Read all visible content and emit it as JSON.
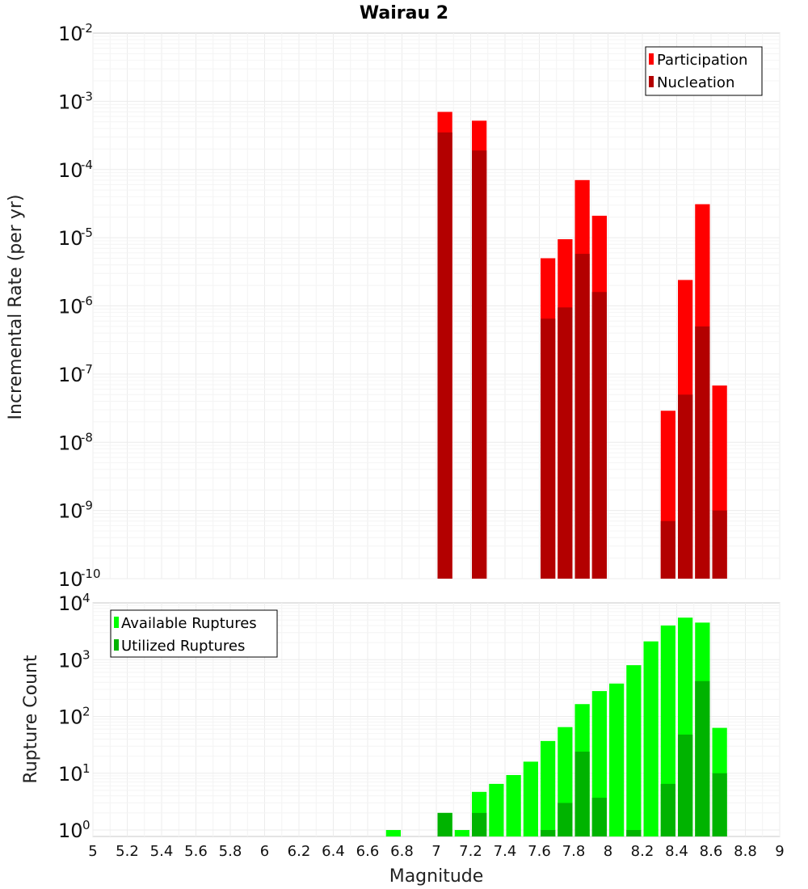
{
  "chart_data": [
    {
      "type": "bar",
      "title": "Wairau 2",
      "xlabel": "",
      "ylabel": "Incremental Rate (per yr)",
      "yscale": "log",
      "xlim": [
        5,
        9
      ],
      "ylim": [
        1e-10,
        0.01
      ],
      "grid": true,
      "legend_position": "top-right",
      "x": [
        7.05,
        7.25,
        7.65,
        7.75,
        7.85,
        7.95,
        8.35,
        8.45,
        8.55,
        8.65
      ],
      "series": [
        {
          "name": "Participation",
          "color": "#ff0000",
          "values": [
            0.0007,
            0.00052,
            5e-06,
            9.5e-06,
            7e-05,
            2.1e-05,
            2.9e-08,
            2.4e-06,
            3.1e-05,
            6.8e-08
          ]
        },
        {
          "name": "Nucleation",
          "color": "#b30000",
          "values": [
            0.00035,
            0.00019,
            6.5e-07,
            9.5e-07,
            5.8e-06,
            1.6e-06,
            7e-10,
            5e-08,
            5e-07,
            1e-09
          ]
        }
      ]
    },
    {
      "type": "bar",
      "title": "",
      "xlabel": "Magnitude",
      "ylabel": "Rupture Count",
      "yscale": "log",
      "xlim": [
        5,
        9
      ],
      "ylim": [
        0.77,
        10000
      ],
      "grid": true,
      "legend_position": "top-left",
      "x": [
        6.75,
        7.05,
        7.15,
        7.25,
        7.35,
        7.45,
        7.55,
        7.65,
        7.75,
        7.85,
        7.95,
        8.05,
        8.15,
        8.25,
        8.35,
        8.45,
        8.55,
        8.65
      ],
      "series": [
        {
          "name": "Available Ruptures",
          "color": "#00ff00",
          "values": [
            1,
            2,
            1,
            4.7,
            6.5,
            9.3,
            16,
            37,
            65,
            165,
            280,
            380,
            800,
            2100,
            4000,
            5500,
            4500,
            63
          ]
        },
        {
          "name": "Utilized Ruptures",
          "color": "#00b300",
          "values": [
            0,
            2,
            0,
            2,
            0,
            0,
            0,
            1,
            3,
            24,
            3.7,
            0,
            1,
            0,
            6.5,
            48,
            420,
            10
          ]
        }
      ]
    }
  ],
  "x_ticks": [
    "5",
    "5.2",
    "5.4",
    "5.6",
    "5.8",
    "6",
    "6.2",
    "6.4",
    "6.6",
    "6.8",
    "7",
    "7.2",
    "7.4",
    "7.6",
    "7.8",
    "8",
    "8.2",
    "8.4",
    "8.6",
    "8.8",
    "9"
  ],
  "top_y_ticks": [
    {
      "base": "10",
      "exp": "-2"
    },
    {
      "base": "10",
      "exp": "-3"
    },
    {
      "base": "10",
      "exp": "-4"
    },
    {
      "base": "10",
      "exp": "-5"
    },
    {
      "base": "10",
      "exp": "-6"
    },
    {
      "base": "10",
      "exp": "-7"
    },
    {
      "base": "10",
      "exp": "-8"
    },
    {
      "base": "10",
      "exp": "-9"
    },
    {
      "base": "10",
      "exp": "-10"
    }
  ],
  "bottom_y_ticks": [
    {
      "base": "10",
      "exp": "4"
    },
    {
      "base": "10",
      "exp": "3"
    },
    {
      "base": "10",
      "exp": "2"
    },
    {
      "base": "10",
      "exp": "1"
    },
    {
      "base": "10",
      "exp": "0"
    }
  ]
}
